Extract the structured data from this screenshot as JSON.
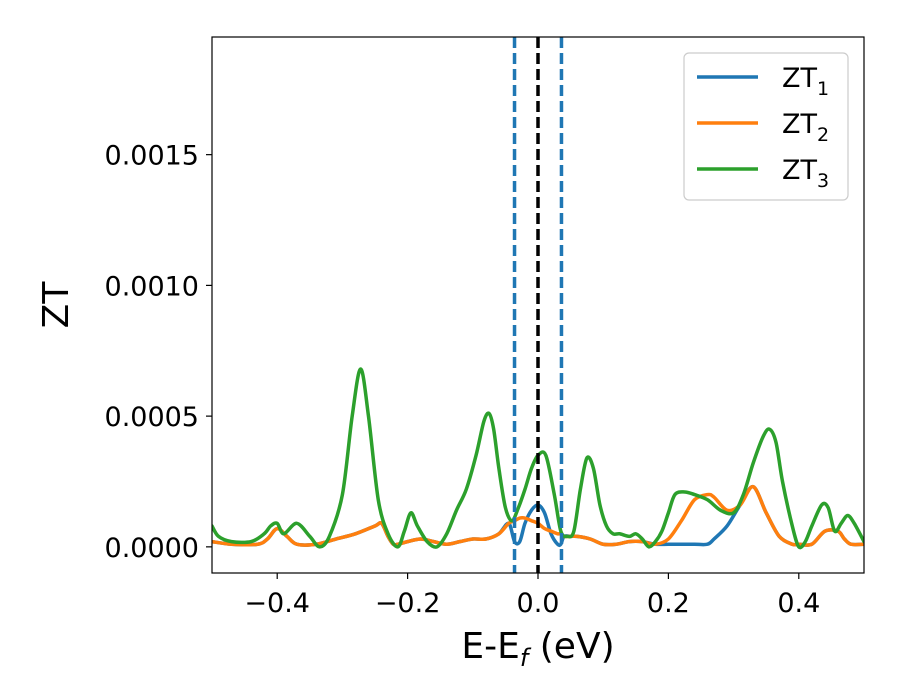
{
  "chart_data": {
    "type": "line",
    "title": "",
    "xlabel": {
      "main": "E-E",
      "sub": "f",
      "suffix": " (eV)"
    },
    "ylabel": "ZT",
    "xlim": [
      -0.5,
      0.5
    ],
    "ylim": [
      -0.0001,
      0.00195
    ],
    "xticks": [
      -0.4,
      -0.2,
      0.0,
      0.2,
      0.4
    ],
    "xtick_labels": [
      "−0.4",
      "−0.2",
      "0.0",
      "0.2",
      "0.4"
    ],
    "yticks": [
      0.0,
      0.0005,
      0.001,
      0.0015
    ],
    "ytick_labels": [
      "0.0000",
      "0.0005",
      "0.0010",
      "0.0015"
    ],
    "legend_position": "top-right",
    "vertical_lines": [
      {
        "x": -0.036,
        "style": "dashed",
        "color": "#1f77b4"
      },
      {
        "x": 0.0,
        "style": "dashed",
        "color": "#000000"
      },
      {
        "x": 0.036,
        "style": "dashed",
        "color": "#1f77b4"
      }
    ],
    "series": [
      {
        "name": "ZT",
        "sub": "1",
        "color": "#1f77b4",
        "x": [
          -0.5,
          -0.47,
          -0.43,
          -0.415,
          -0.4,
          -0.385,
          -0.37,
          -0.34,
          -0.31,
          -0.28,
          -0.25,
          -0.24,
          -0.23,
          -0.222,
          -0.215,
          -0.2,
          -0.18,
          -0.16,
          -0.14,
          -0.12,
          -0.1,
          -0.08,
          -0.06,
          -0.045,
          -0.036,
          -0.028,
          -0.02,
          -0.01,
          0.0,
          0.01,
          0.02,
          0.03,
          0.035,
          0.04,
          0.05,
          0.06,
          0.08,
          0.1,
          0.12,
          0.14,
          0.16,
          0.18,
          0.2,
          0.22,
          0.24,
          0.26,
          0.27,
          0.29,
          0.31,
          0.33,
          0.35,
          0.37,
          0.39,
          0.4,
          0.42,
          0.44,
          0.46,
          0.47,
          0.48,
          0.5
        ],
        "y": [
          2e-05,
          1e-05,
          1e-05,
          3e-05,
          7e-05,
          4e-05,
          1e-05,
          1e-05,
          3e-05,
          5e-05,
          8e-05,
          9e-05,
          4e-05,
          1e-05,
          1e-05,
          2e-05,
          3e-05,
          2e-05,
          1e-05,
          2e-05,
          3e-05,
          3e-05,
          5e-05,
          9e-05,
          2e-05,
          2e-05,
          9e-05,
          0.00014,
          0.00016,
          0.00013,
          5e-05,
          1e-05,
          1e-05,
          4e-05,
          4e-05,
          4e-05,
          3e-05,
          1e-05,
          1e-05,
          2e-05,
          2e-05,
          1e-05,
          1e-05,
          1e-05,
          1e-05,
          1e-05,
          3e-05,
          8e-05,
          0.00016,
          0.00023,
          0.00013,
          4e-05,
          1e-05,
          1e-05,
          1e-05,
          6e-05,
          6e-05,
          3e-05,
          1e-05,
          1e-05
        ]
      },
      {
        "name": "ZT",
        "sub": "2",
        "color": "#ff7f0e",
        "x": [
          -0.5,
          -0.47,
          -0.43,
          -0.415,
          -0.4,
          -0.385,
          -0.37,
          -0.34,
          -0.31,
          -0.28,
          -0.25,
          -0.24,
          -0.23,
          -0.222,
          -0.215,
          -0.2,
          -0.18,
          -0.16,
          -0.14,
          -0.12,
          -0.1,
          -0.08,
          -0.06,
          -0.045,
          -0.036,
          -0.028,
          -0.02,
          -0.01,
          0.0,
          0.01,
          0.02,
          0.03,
          0.035,
          0.04,
          0.05,
          0.06,
          0.08,
          0.1,
          0.12,
          0.14,
          0.16,
          0.18,
          0.2,
          0.22,
          0.24,
          0.26,
          0.27,
          0.29,
          0.31,
          0.33,
          0.35,
          0.37,
          0.39,
          0.4,
          0.42,
          0.44,
          0.46,
          0.47,
          0.48,
          0.5
        ],
        "y": [
          2e-05,
          1e-05,
          1e-05,
          3e-05,
          7e-05,
          4e-05,
          1e-05,
          1e-05,
          3e-05,
          5e-05,
          8e-05,
          9e-05,
          4e-05,
          1e-05,
          1e-05,
          2e-05,
          3e-05,
          2e-05,
          1e-05,
          2e-05,
          3e-05,
          3e-05,
          5e-05,
          9e-05,
          0.0001,
          0.00011,
          0.00011,
          0.0001,
          9e-05,
          7e-05,
          6e-05,
          5e-05,
          5e-05,
          4e-05,
          4e-05,
          4e-05,
          3e-05,
          1e-05,
          1e-05,
          2e-05,
          2e-05,
          1e-05,
          3e-05,
          0.0001,
          0.00018,
          0.0002,
          0.00019,
          0.00014,
          0.00016,
          0.00023,
          0.00013,
          4e-05,
          1e-05,
          1e-05,
          1e-05,
          6e-05,
          6e-05,
          3e-05,
          1e-05,
          1e-05
        ]
      },
      {
        "name": "ZT",
        "sub": "3",
        "color": "#2ca02c",
        "x": [
          -0.5,
          -0.49,
          -0.47,
          -0.44,
          -0.42,
          -0.41,
          -0.4,
          -0.39,
          -0.37,
          -0.35,
          -0.335,
          -0.32,
          -0.3,
          -0.285,
          -0.272,
          -0.26,
          -0.245,
          -0.23,
          -0.215,
          -0.205,
          -0.195,
          -0.185,
          -0.17,
          -0.155,
          -0.14,
          -0.125,
          -0.11,
          -0.095,
          -0.083,
          -0.075,
          -0.068,
          -0.06,
          -0.05,
          -0.04,
          -0.03,
          -0.02,
          -0.01,
          0.0,
          0.012,
          0.025,
          0.035,
          0.045,
          0.055,
          0.065,
          0.075,
          0.085,
          0.095,
          0.105,
          0.115,
          0.125,
          0.14,
          0.15,
          0.16,
          0.17,
          0.18,
          0.19,
          0.2,
          0.21,
          0.225,
          0.24,
          0.26,
          0.28,
          0.3,
          0.315,
          0.33,
          0.345,
          0.355,
          0.365,
          0.375,
          0.39,
          0.4,
          0.41,
          0.42,
          0.435,
          0.445,
          0.455,
          0.465,
          0.475,
          0.485,
          0.5
        ],
        "y": [
          8e-05,
          4e-05,
          2e-05,
          2e-05,
          5e-05,
          8e-05,
          9e-05,
          5e-05,
          9e-05,
          4e-05,
          0.0,
          4e-05,
          0.0002,
          0.0005,
          0.00068,
          0.0005,
          0.00018,
          5e-05,
          0.0,
          6e-05,
          0.00013,
          8e-05,
          2e-05,
          0.0,
          5e-05,
          0.00014,
          0.00022,
          0.00035,
          0.00048,
          0.00051,
          0.00045,
          0.0003,
          0.00015,
          0.0001,
          0.00015,
          0.00022,
          0.0003,
          0.00035,
          0.00035,
          0.0002,
          6e-05,
          4e-05,
          6e-05,
          0.00022,
          0.00034,
          0.0003,
          0.00016,
          8e-05,
          5e-05,
          5e-05,
          4e-05,
          5e-05,
          3e-05,
          0.0,
          2e-05,
          6e-05,
          0.00013,
          0.0002,
          0.00021,
          0.0002,
          0.00018,
          0.00014,
          0.00013,
          0.0002,
          0.00032,
          0.00042,
          0.00045,
          0.0004,
          0.00025,
          8e-05,
          0.0,
          2e-05,
          8e-05,
          0.00016,
          0.00015,
          6e-05,
          9e-05,
          0.00012,
          9e-05,
          2e-05
        ]
      }
    ]
  }
}
